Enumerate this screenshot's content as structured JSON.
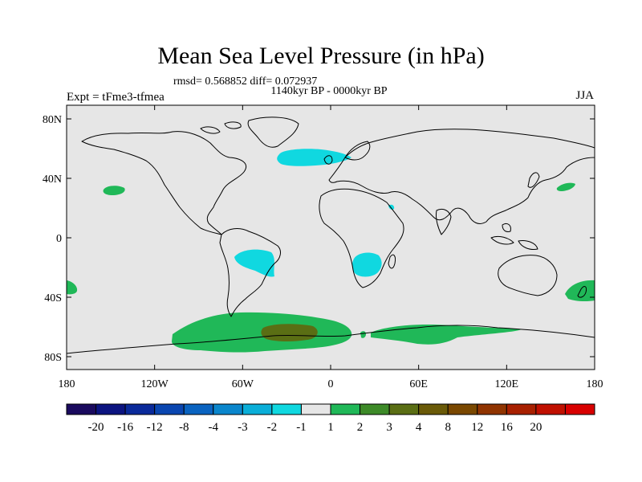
{
  "title": "Mean Sea Level Pressure (in hPa)",
  "rmsd_line": "rmsd= 0.568852 diff= 0.072937",
  "period": "1140kyr BP - 0000kyr BP",
  "experiment": "Expt = tFme3-tfmea",
  "season": "JJA",
  "axes": {
    "lat_labels": [
      "80N",
      "40N",
      "0",
      "40S",
      "80S"
    ],
    "lat_values": [
      80,
      40,
      0,
      -40,
      -80
    ],
    "lon_labels": [
      "180",
      "120W",
      "60W",
      "0",
      "60E",
      "120E",
      "180"
    ],
    "lon_values": [
      -180,
      -120,
      -60,
      0,
      60,
      120,
      180
    ]
  },
  "colorbar": {
    "colors": [
      "#1a0a5e",
      "#0c1480",
      "#0a2a9a",
      "#0a46b0",
      "#0a63c0",
      "#0a86cc",
      "#0aaed8",
      "#10d8e0",
      "#e6e6e6",
      "#20b858",
      "#3d8a28",
      "#5a6e14",
      "#6a5a08",
      "#7a4800",
      "#903400",
      "#a82000",
      "#c01000",
      "#d80000"
    ],
    "labels": [
      "-20",
      "-16",
      "-12",
      "-8",
      "-4",
      "-3",
      "-2",
      "-1",
      "1",
      "2",
      "3",
      "4",
      "8",
      "12",
      "16",
      "20"
    ]
  },
  "colors": {
    "ocean_background": "#e6e6e6",
    "positive_1_2": "#20b858",
    "positive_3_4": "#5a6e14",
    "negative_1_2": "#10d8e0"
  }
}
